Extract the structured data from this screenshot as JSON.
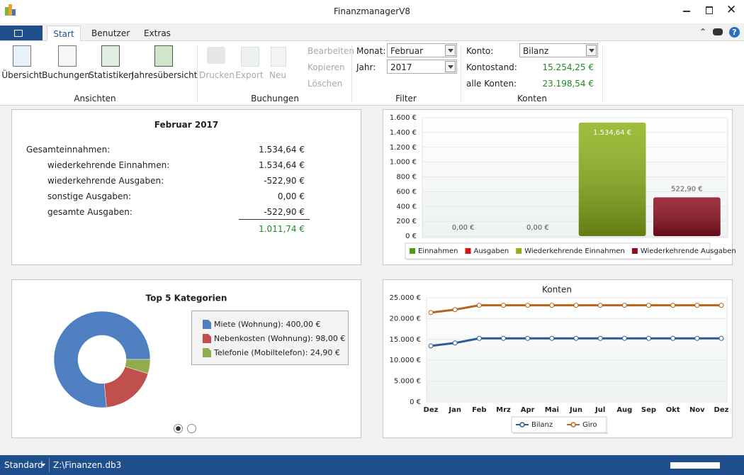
{
  "window": {
    "title": "FinanzmanagerV8"
  },
  "tabs": [
    "Start",
    "Benutzer",
    "Extras"
  ],
  "ribbon": {
    "ansichten": {
      "label": "Ansichten",
      "buttons": [
        "Übersicht",
        "Buchungen",
        "Statistiken",
        "Jahresübersicht"
      ]
    },
    "buchungen": {
      "label": "Buchungen",
      "buttons": [
        "Drucken",
        "Export",
        "Neu"
      ],
      "small_buttons": [
        "Bearbeiten",
        "Kopieren",
        "Löschen"
      ]
    },
    "filter": {
      "label": "Filter",
      "fields": [
        {
          "label": "Monat:",
          "value": "Februar"
        },
        {
          "label": "Jahr:",
          "value": "2017"
        }
      ]
    },
    "konten": {
      "label": "Konten",
      "konto": {
        "label": "Konto:",
        "value": "Bilanz"
      },
      "kontostand": {
        "label": "Kontostand:",
        "value": "15.254,25 €"
      },
      "alle_konten": {
        "label": "alle Konten:",
        "value": "23.198,54 €"
      }
    }
  },
  "summary": {
    "title": "Februar 2017",
    "rows": [
      {
        "label": "Gesamteinnahmen:",
        "value": "1.534,64 €"
      },
      {
        "label": "wiederkehrende Einnahmen:",
        "value": "1.534,64 €"
      },
      {
        "label": "wiederkehrende Ausgaben:",
        "value": "-522,90 €"
      },
      {
        "label": "sonstige Ausgaben:",
        "value": "0,00 €"
      },
      {
        "label": "gesamte Ausgaben:",
        "value": "-522,90 €"
      }
    ],
    "total": "1.011,74 €"
  },
  "chart_data": [
    {
      "type": "bar",
      "categories": [
        null
      ],
      "series": [
        {
          "name": "Einnahmen",
          "color": "#4e9a1f",
          "values": [
            0
          ],
          "value_labels": [
            "0,00 €"
          ]
        },
        {
          "name": "Ausgaben",
          "color": "#cc1a1a",
          "values": [
            0
          ],
          "value_labels": [
            "0,00 €"
          ]
        },
        {
          "name": "Wiederkehrende Einnahmen",
          "color": "#8db21a",
          "values": [
            1534.64
          ],
          "value_labels": [
            "1.534,64 €"
          ]
        },
        {
          "name": "Wiederkehrende Ausgaben",
          "color": "#8c0e1f",
          "values": [
            522.9
          ],
          "value_labels": [
            "522,90 €"
          ]
        }
      ],
      "ylim": [
        0,
        1600
      ],
      "yticks": [
        {
          "value": 0,
          "label": "0 €"
        },
        {
          "value": 200,
          "label": "200 €"
        },
        {
          "value": 400,
          "label": "400 €"
        },
        {
          "value": 600,
          "label": "600 €"
        },
        {
          "value": 800,
          "label": "800 €"
        },
        {
          "value": 1000,
          "label": "1.000 €"
        },
        {
          "value": 1200,
          "label": "1.200 €"
        },
        {
          "value": 1400,
          "label": "1.400 €"
        },
        {
          "value": 1600,
          "label": "1.600 €"
        }
      ],
      "grid": true,
      "legend": "bottom"
    },
    {
      "type": "pie",
      "title": "Top 5 Kategorien",
      "donut": true,
      "legend": "right",
      "categories": [
        "Miete (Wohnung): 400,00 €",
        "Nebenkosten (Wohnung): 98,00 €",
        "Telefonie (Mobiltelefon): 24,90 €"
      ],
      "values": [
        400,
        98,
        24.9
      ],
      "colors": [
        "#4f7fc1",
        "#c0504d",
        "#8fad4f"
      ]
    },
    {
      "type": "line",
      "title": "Konten",
      "categories": [
        "Dez",
        "Jan",
        "Feb",
        "Mrz",
        "Apr",
        "Mai",
        "Jun",
        "Jul",
        "Aug",
        "Sep",
        "Okt",
        "Nov",
        "Dez"
      ],
      "series": [
        {
          "name": "Bilanz",
          "color": "#2e5b91",
          "values": [
            13450,
            14150,
            15254.25,
            15254.25,
            15254.25,
            15254.25,
            15254.25,
            15254.25,
            15254.25,
            15254.25,
            15254.25,
            15254.25,
            15254.25
          ]
        },
        {
          "name": "Giro",
          "color": "#b5651d",
          "values": [
            21450,
            22150,
            23198.54,
            23198.54,
            23198.54,
            23198.54,
            23198.54,
            23198.54,
            23198.54,
            23198.54,
            23198.54,
            23198.54,
            23198.54
          ]
        }
      ],
      "ylim": [
        0,
        25000
      ],
      "yticks": [
        {
          "value": 0,
          "label": "0 €"
        },
        {
          "value": 5000,
          "label": "5.000 €"
        },
        {
          "value": 10000,
          "label": "10.000 €"
        },
        {
          "value": 15000,
          "label": "15.000 €"
        },
        {
          "value": 20000,
          "label": "20.000 €"
        },
        {
          "value": 25000,
          "label": "25.000 €"
        }
      ],
      "grid": true,
      "legend": "bottom"
    }
  ],
  "status_bar": {
    "mode": "Standard",
    "file": "Z:\\Finanzen.db3"
  }
}
